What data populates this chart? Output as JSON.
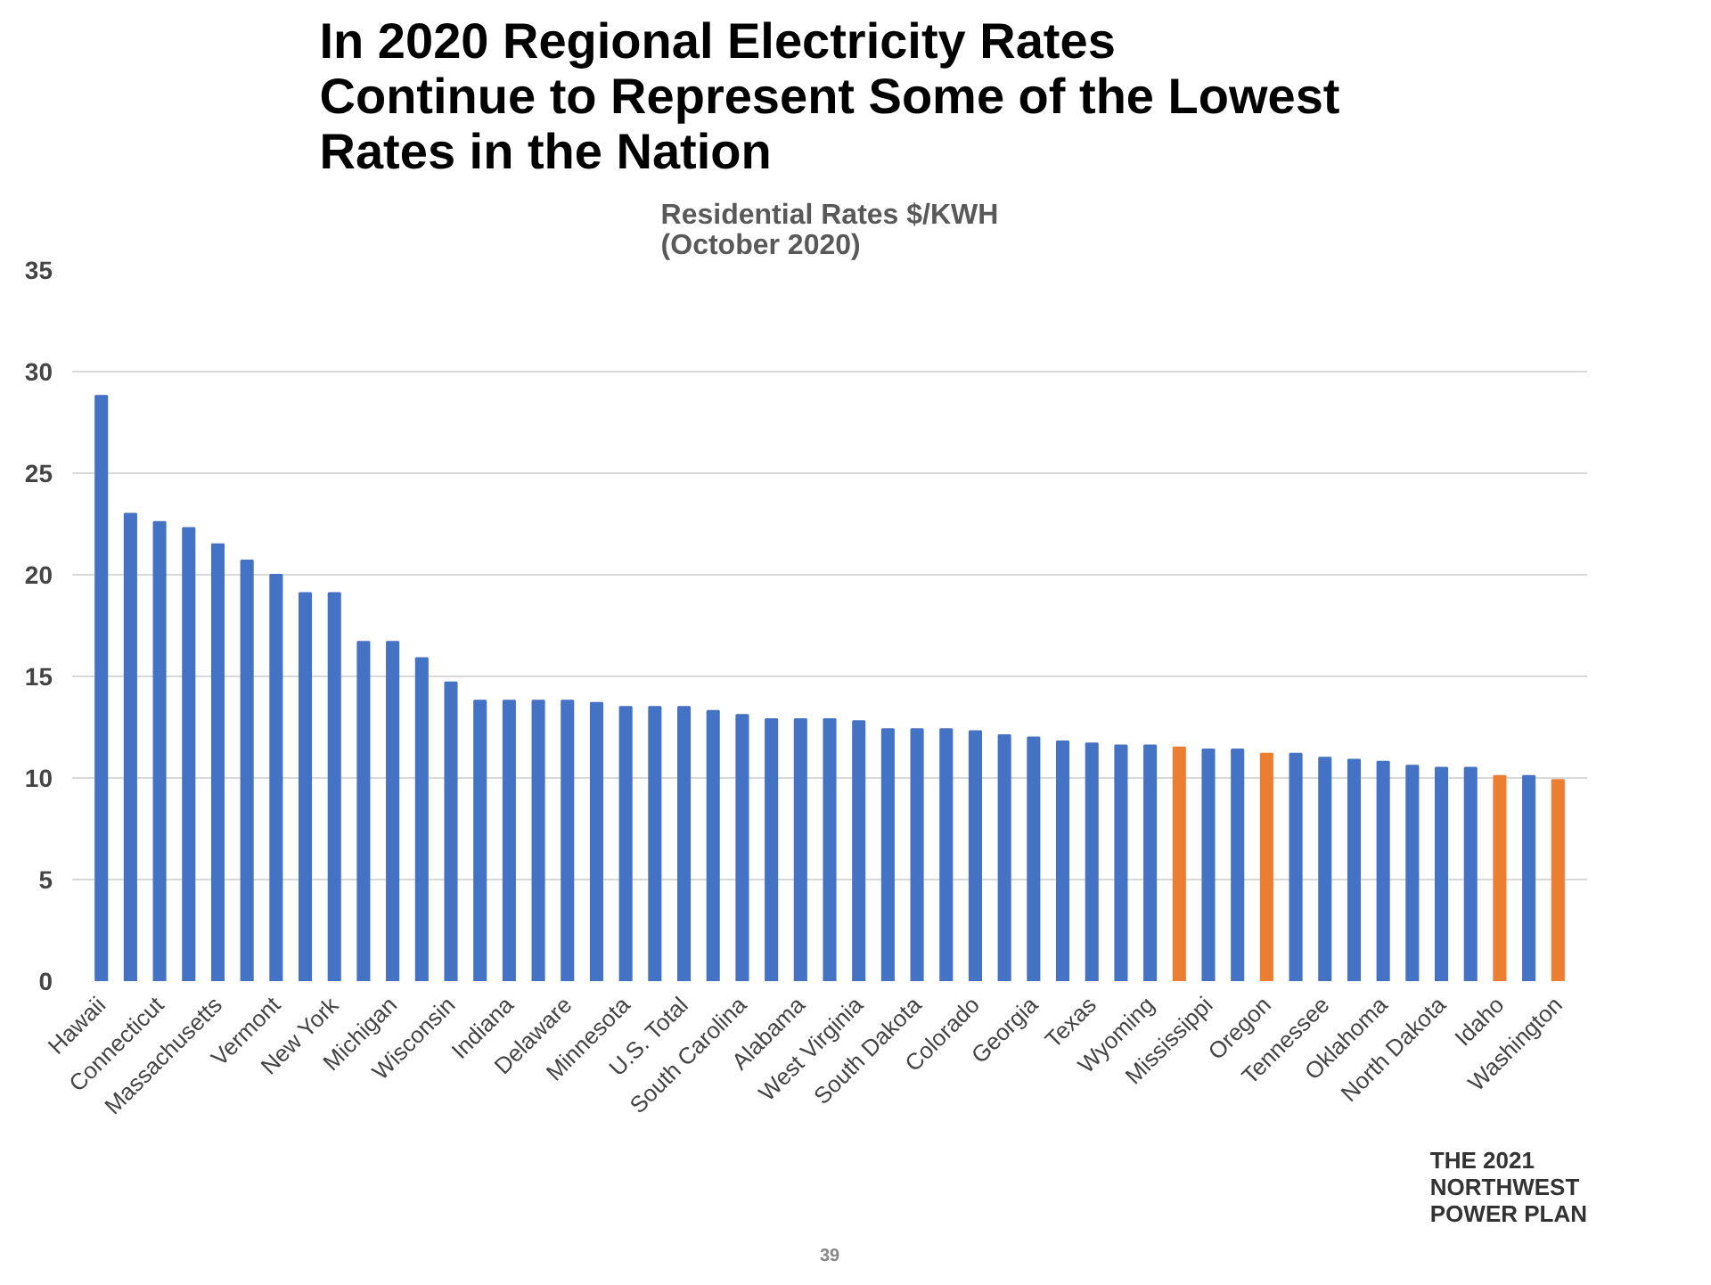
{
  "chart_data": {
    "type": "bar",
    "title": "In 2020 Regional Electricity Rates Continue to Represent Some of the Lowest Rates in the Nation",
    "subtitle": "Residential Rates $/KWH\n(October 2020)",
    "categories": [
      "Hawaii",
      null,
      "Connecticut",
      null,
      "Massachusetts",
      null,
      "Vermont",
      null,
      "New York",
      null,
      "Michigan",
      null,
      "Wisconsin",
      null,
      "Indiana",
      null,
      "Delaware",
      null,
      "Minnesota",
      null,
      "U.S. Total",
      null,
      "South Carolina",
      null,
      "Alabama",
      null,
      "West Virginia",
      null,
      "South Dakota",
      null,
      "Colorado",
      null,
      "Georgia",
      null,
      "Texas",
      null,
      "Wyoming",
      null,
      "Mississippi",
      null,
      "Oregon",
      null,
      "Tennessee",
      null,
      "Oklahoma",
      null,
      "North Dakota",
      null,
      "Idaho",
      null,
      "Washington"
    ],
    "values": [
      28.8,
      23.0,
      22.6,
      22.3,
      21.5,
      20.7,
      20.0,
      19.1,
      19.1,
      16.7,
      16.7,
      15.9,
      14.7,
      13.8,
      13.8,
      13.8,
      13.8,
      13.7,
      13.5,
      13.5,
      13.5,
      13.3,
      13.1,
      12.9,
      12.9,
      12.9,
      12.8,
      12.4,
      12.4,
      12.4,
      12.3,
      12.1,
      12.0,
      11.8,
      11.7,
      11.6,
      11.6,
      11.5,
      11.4,
      11.4,
      11.2,
      11.2,
      11.0,
      10.9,
      10.8,
      10.6,
      10.5,
      10.5,
      10.1,
      10.1,
      9.9
    ],
    "colors": [
      "#4472c4",
      "#4472c4",
      "#4472c4",
      "#4472c4",
      "#4472c4",
      "#4472c4",
      "#4472c4",
      "#4472c4",
      "#4472c4",
      "#4472c4",
      "#4472c4",
      "#4472c4",
      "#4472c4",
      "#4472c4",
      "#4472c4",
      "#4472c4",
      "#4472c4",
      "#4472c4",
      "#4472c4",
      "#4472c4",
      "#4472c4",
      "#4472c4",
      "#4472c4",
      "#4472c4",
      "#4472c4",
      "#4472c4",
      "#4472c4",
      "#4472c4",
      "#4472c4",
      "#4472c4",
      "#4472c4",
      "#4472c4",
      "#4472c4",
      "#4472c4",
      "#4472c4",
      "#4472c4",
      "#4472c4",
      "#ed7d31",
      "#4472c4",
      "#4472c4",
      "#ed7d31",
      "#4472c4",
      "#4472c4",
      "#4472c4",
      "#4472c4",
      "#4472c4",
      "#4472c4",
      "#4472c4",
      "#ed7d31",
      "#4472c4",
      "#ed7d31"
    ],
    "ylim": [
      0,
      35
    ],
    "yticks": [
      0,
      5,
      10,
      15,
      20,
      25,
      30,
      35
    ],
    "grid": "y",
    "annotations": [
      "THE 2021\nNORTHWEST\nPOWER PLAN",
      "39"
    ]
  }
}
